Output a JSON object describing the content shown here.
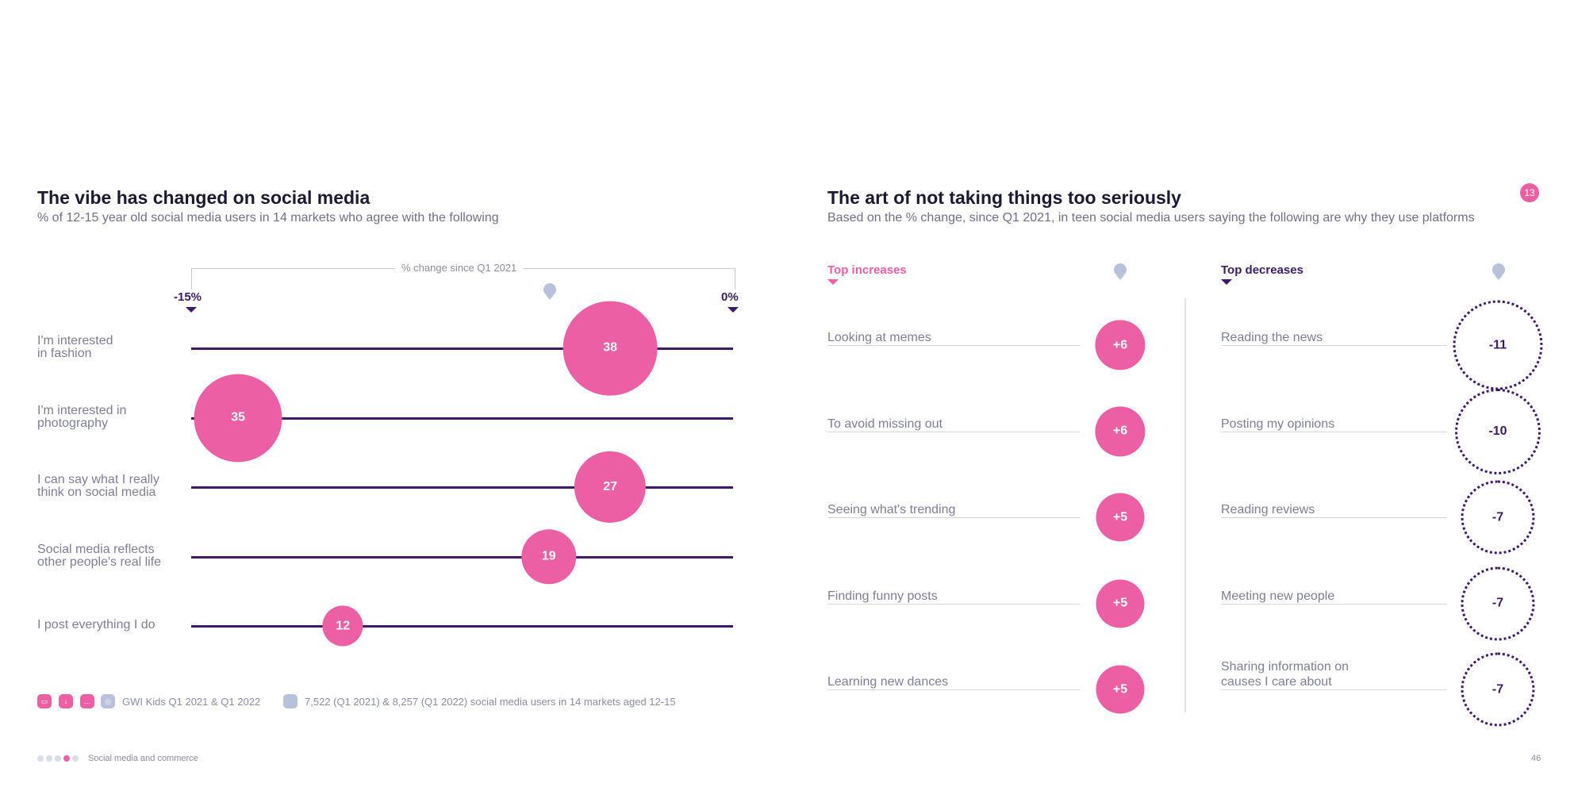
{
  "left": {
    "title": "The vibe has changed on social media",
    "subtitle": "% of 12-15 year old social media users in 14 markets who agree with the following",
    "axis_caption": "% change since Q1 2021",
    "axis_min_label": "-15%",
    "axis_max_label": "0%"
  },
  "right": {
    "title": "The art of not taking things too seriously",
    "subtitle": "Based on the % change, since Q1 2021, in teen social media users saying the following are why they use platforms",
    "badge": "13",
    "inc_header": "Top increases",
    "dec_header": "Top decreases"
  },
  "chart_data": [
    {
      "type": "scatter",
      "title": "The vibe has changed on social media",
      "xlabel": "% change since Q1 2021",
      "xlim": [
        -15,
        0
      ],
      "categories": [
        "I'm interested\nin fashion",
        "I'm interested in\nphotography",
        "I can say what I really\nthink on social media",
        "Social media reflects\nother people's real life",
        "I post everything I do"
      ],
      "x": [
        -3.4,
        -13.7,
        -3.4,
        -5.1,
        -10.8
      ],
      "values": [
        38,
        35,
        27,
        19,
        12
      ]
    },
    {
      "type": "bar",
      "title": "Top increases",
      "categories": [
        "Looking at memes",
        "To avoid missing out",
        "Seeing what's trending",
        "Finding funny posts",
        "Learning new dances"
      ],
      "values": [
        6,
        6,
        5,
        5,
        5
      ],
      "labels": [
        "+6",
        "+6",
        "+5",
        "+5",
        "+5"
      ]
    },
    {
      "type": "bar",
      "title": "Top decreases",
      "categories": [
        "Reading the news",
        "Posting my opinions",
        "Reading reviews",
        "Meeting new people",
        "Sharing information on\ncauses I care about"
      ],
      "values": [
        -11,
        -10,
        -7,
        -7,
        -7
      ],
      "labels": [
        "-11",
        "-10",
        "-7",
        "-7",
        "-7"
      ]
    }
  ],
  "footer": {
    "source1": "GWI Kids Q1 2021 & Q1 2022",
    "source2": "7,522 (Q1 2021) & 8,257 (Q1 2022) social media users in 14 markets aged 12-15",
    "section": "Social media and commerce",
    "page_number": "46",
    "colors": {
      "pink": "#ec5fa4",
      "purple": "#3e1a6b",
      "grey": "#b8c1db"
    }
  }
}
